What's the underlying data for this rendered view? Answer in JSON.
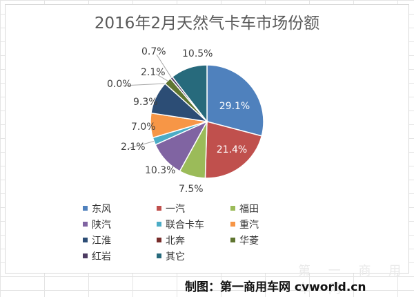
{
  "chart_data": {
    "type": "pie",
    "title": "2016年2月天然气卡车市场份额",
    "categories": [
      "东风",
      "一汽",
      "福田",
      "陕汽",
      "联合卡车",
      "重汽",
      "江淮",
      "北奔",
      "华菱",
      "红岩",
      "其它"
    ],
    "values": [
      29.1,
      21.4,
      7.5,
      10.3,
      2.1,
      7.0,
      9.3,
      0.0,
      2.1,
      0.7,
      10.5
    ],
    "data_labels": [
      "29.1%",
      "21.4%",
      "7.5%",
      "10.3%",
      "2.1%",
      "7.0%",
      "9.3%",
      "0.0%",
      "2.1%",
      "0.7%",
      "10.5%"
    ],
    "colors": [
      "#4f81bd",
      "#c0504d",
      "#9bbb59",
      "#8064a2",
      "#4bacc6",
      "#f79646",
      "#2c4d75",
      "#772c2a",
      "#5f7530",
      "#4d3b62",
      "#276a7c"
    ],
    "legend_position": "bottom"
  },
  "watermark": "第 一 商 用 车 网",
  "credit": "制图：第一商用车网 cvworld.cn"
}
